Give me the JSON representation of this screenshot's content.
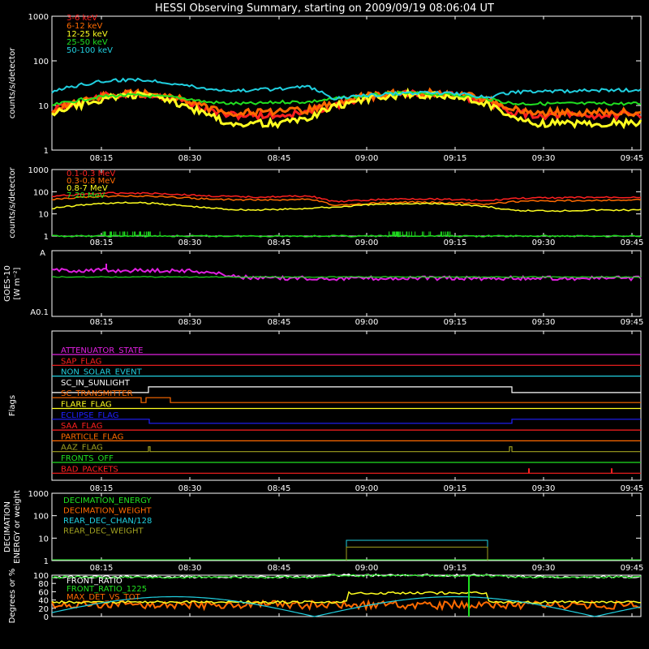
{
  "title": "HESSI Observing Summary, starting on 2009/09/19 08:06:04 UT",
  "time_ticks": [
    "08:15",
    "08:30",
    "08:45",
    "09:00",
    "09:15",
    "09:30",
    "09:45"
  ],
  "colors": {
    "red": "#ff2020",
    "orange": "#ff6a00",
    "yellow": "#ffff20",
    "green": "#20e020",
    "cyan": "#20d0e0",
    "magenta": "#e020e0",
    "blue": "#2020ff",
    "olive": "#a0a020",
    "white": "#ffffff"
  },
  "chart_data": [
    {
      "id": "rates",
      "type": "line",
      "ylabel": "counts/s/detector",
      "y_scale": "log",
      "ylim": [
        1,
        1000
      ],
      "y_tick_labels": [
        "1",
        "10",
        "100",
        "1000"
      ],
      "series": [
        {
          "name": "3-6 keV",
          "color": "#ff2020",
          "values": [
            8,
            12,
            16,
            18,
            17,
            13,
            8,
            6,
            6,
            6,
            7,
            10,
            14,
            17,
            19,
            18,
            16,
            12,
            7,
            6,
            6,
            6,
            6,
            6
          ]
        },
        {
          "name": "6-12 keV",
          "color": "#ff6a00",
          "values": [
            8,
            12,
            16,
            19,
            18,
            14,
            9,
            7,
            7,
            7,
            8,
            11,
            15,
            18,
            19,
            19,
            17,
            13,
            8,
            7,
            7,
            7,
            7,
            7
          ]
        },
        {
          "name": "12-25 keV",
          "color": "#ffff20",
          "values": [
            6,
            10,
            14,
            17,
            16,
            11,
            6,
            4,
            4,
            4,
            5,
            9,
            13,
            16,
            18,
            17,
            15,
            11,
            5,
            4,
            4,
            4,
            4,
            4
          ]
        },
        {
          "name": "25-50 keV",
          "color": "#20e020",
          "values": [
            10,
            13,
            16,
            17,
            16,
            15,
            12,
            11,
            11,
            12,
            12,
            14,
            16,
            18,
            19,
            18,
            17,
            14,
            11,
            11,
            11,
            11,
            11,
            11
          ]
        },
        {
          "name": "50-100 keV",
          "color": "#20d0e0",
          "values": [
            20,
            28,
            35,
            38,
            36,
            30,
            24,
            22,
            22,
            24,
            26,
            14,
            16,
            18,
            19,
            19,
            18,
            15,
            20,
            20,
            21,
            22,
            22,
            22
          ]
        }
      ]
    },
    {
      "id": "high-energy",
      "type": "line",
      "ylabel": "counts/s/detector",
      "y_scale": "log",
      "ylim": [
        1,
        1000
      ],
      "y_tick_labels": [
        "1",
        "10",
        "100",
        "1000"
      ],
      "series": [
        {
          "name": "0.1-0.3 MeV",
          "color": "#ff2020",
          "values": [
            60,
            75,
            85,
            88,
            85,
            75,
            65,
            60,
            58,
            60,
            65,
            35,
            40,
            45,
            48,
            47,
            44,
            38,
            50,
            52,
            54,
            55,
            56,
            57
          ]
        },
        {
          "name": "0.3-0.8 MeV",
          "color": "#ff6a00",
          "values": [
            45,
            55,
            62,
            65,
            62,
            55,
            48,
            44,
            43,
            44,
            48,
            25,
            28,
            32,
            34,
            33,
            31,
            27,
            36,
            38,
            39,
            40,
            41,
            42
          ]
        },
        {
          "name": "0.8-7 MeV",
          "color": "#ffff20",
          "values": [
            18,
            24,
            30,
            32,
            30,
            24,
            19,
            16,
            15,
            16,
            18,
            20,
            24,
            28,
            30,
            29,
            26,
            21,
            14,
            14,
            14,
            15,
            15,
            15
          ]
        },
        {
          "name": "7-20 MeV",
          "color": "#20e020",
          "values": [
            1,
            1,
            1,
            1,
            1,
            1,
            1,
            1,
            1,
            1,
            1,
            1,
            1,
            1,
            1,
            1,
            1,
            1,
            1,
            1,
            1,
            1,
            1,
            1
          ]
        }
      ]
    },
    {
      "id": "goes",
      "type": "line",
      "ylabel_lines": [
        "GOES-10",
        "[W m⁻²]"
      ],
      "y_tick_labels": [
        "A",
        "A0.1"
      ],
      "series": [
        {
          "name": "",
          "color": "#e020e0",
          "values": [
            0.7,
            0.7,
            0.7,
            0.7,
            0.7,
            0.7,
            0.68,
            0.62,
            0.58,
            0.58,
            0.58,
            0.58,
            0.58,
            0.58,
            0.58,
            0.58,
            0.58,
            0.58,
            0.58,
            0.58,
            0.58,
            0.58,
            0.58,
            0.58
          ]
        },
        {
          "name": "",
          "color": "#20e020",
          "values": [
            0.6,
            0.6,
            0.6,
            0.6,
            0.6,
            0.6,
            0.6,
            0.6,
            0.6,
            0.6,
            0.6,
            0.6,
            0.6,
            0.6,
            0.6,
            0.6,
            0.6,
            0.6,
            0.6,
            0.6,
            0.6,
            0.6,
            0.6,
            0.6
          ]
        }
      ]
    },
    {
      "id": "flags",
      "type": "line",
      "ylabel": "Flags",
      "series": [
        {
          "name": "ATTENUATOR_STATE",
          "color": "#e020e0"
        },
        {
          "name": "SAP_FLAG",
          "color": "#ff2020"
        },
        {
          "name": "NON_SOLAR_EVENT",
          "color": "#20d0e0"
        },
        {
          "name": "SC_IN_SUNLIGHT",
          "color": "#ffffff"
        },
        {
          "name": "SC_TRANSMITTER",
          "color": "#ff6a00"
        },
        {
          "name": "FLARE_FLAG",
          "color": "#ffff20"
        },
        {
          "name": "ECLIPSE_FLAG",
          "color": "#2020ff"
        },
        {
          "name": "SAA_FLAG",
          "color": "#ff2020"
        },
        {
          "name": "PARTICLE_FLAG",
          "color": "#ff6a00"
        },
        {
          "name": "AAZ_FLAG",
          "color": "#a0a020"
        },
        {
          "name": "FRONTS_OFF",
          "color": "#20e020"
        },
        {
          "name": "BAD_PACKETS",
          "color": "#ff2020"
        }
      ]
    },
    {
      "id": "decimation",
      "type": "line",
      "ylabel_lines": [
        "DECIMATION",
        "ENERGY or weight"
      ],
      "y_scale": "log",
      "ylim": [
        1,
        1000
      ],
      "y_tick_labels": [
        "1",
        "10",
        "100",
        "1000"
      ],
      "series": [
        {
          "name": "DECIMATION_ENERGY",
          "color": "#20e020"
        },
        {
          "name": "DECIMATION_WEIGHT",
          "color": "#ff6a00"
        },
        {
          "name": "REAR_DEC_CHAN/128",
          "color": "#20d0e0"
        },
        {
          "name": "REAR_DEC_WEIGHT",
          "color": "#a0a020"
        }
      ]
    },
    {
      "id": "ratios",
      "type": "line",
      "ylabel": "Degrees or %",
      "ylim": [
        0,
        100
      ],
      "y_tick_labels": [
        "0",
        "20",
        "40",
        "60",
        "80",
        "100"
      ],
      "series": [
        {
          "name": "FRONT_RATIO",
          "color": "#ffffff",
          "values": [
            96,
            96,
            96,
            96,
            96,
            96,
            96,
            96,
            96,
            96,
            96,
            100,
            100,
            100,
            100,
            100,
            100,
            100,
            96,
            96,
            96,
            96,
            96,
            96
          ]
        },
        {
          "name": "FRONT_RATIO_1225",
          "color": "#20e020",
          "values": [
            95,
            95,
            95,
            95,
            95,
            95,
            95,
            95,
            95,
            95,
            95,
            99,
            99,
            99,
            99,
            99,
            99,
            99,
            95,
            95,
            95,
            95,
            95,
            95
          ]
        },
        {
          "name": "MAX_DET_VS_TOT",
          "color": "#ff6a00",
          "values": [
            28,
            28,
            28,
            28,
            28,
            28,
            28,
            28,
            28,
            28,
            28,
            28,
            28,
            28,
            28,
            28,
            28,
            28,
            28,
            28,
            28,
            28,
            28,
            28
          ]
        }
      ]
    }
  ]
}
